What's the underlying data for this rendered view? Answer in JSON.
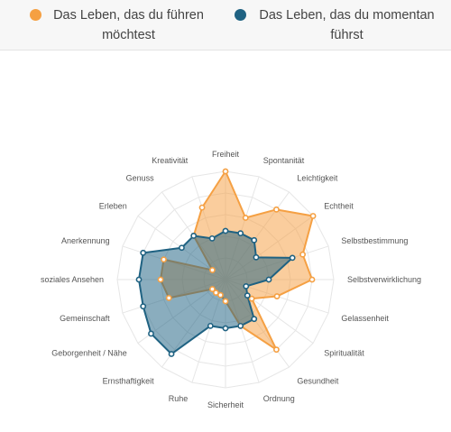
{
  "legend": [
    {
      "label": "Das Leben, das du führen möchtest",
      "color": "#f5a043"
    },
    {
      "label": "Das Leben, das du momentan führst",
      "color": "#1f6282"
    }
  ],
  "chart_data": {
    "type": "radar",
    "categories": [
      "Freiheit",
      "Spontanität",
      "Leichtigkeit",
      "Echtheit",
      "Selbstbestimmung",
      "Selbstverwirklichung",
      "Gelassenheit",
      "Spiritualität",
      "Gesundheit",
      "Ordnung",
      "Sicherheit",
      "Ruhe",
      "Ernsthaftigkeit",
      "Geborgenheit / Nähe",
      "Gemeinschaft",
      "soziales Ansehen",
      "Anerkennung",
      "Erleben",
      "Genuss",
      "Kreativität"
    ],
    "rmax": 10,
    "grid_levels": 5,
    "series": [
      {
        "name": "Das Leben, das du führen möchtest",
        "color": "#f5a043",
        "values": [
          10,
          6,
          8,
          10,
          7.5,
          8,
          5,
          3,
          8,
          4.5,
          2,
          1.5,
          1.5,
          1.5,
          5.5,
          6,
          6,
          1.5,
          5,
          7
        ]
      },
      {
        "name": "Das Leben, das du momentan führst",
        "color": "#1f6282",
        "values": [
          4.5,
          4.5,
          4.5,
          3.5,
          6.5,
          4,
          2,
          2.5,
          4.5,
          4.5,
          4.5,
          4.5,
          8.5,
          8.5,
          8,
          8,
          8,
          5,
          5,
          4
        ]
      }
    ],
    "legend_position": "top"
  }
}
